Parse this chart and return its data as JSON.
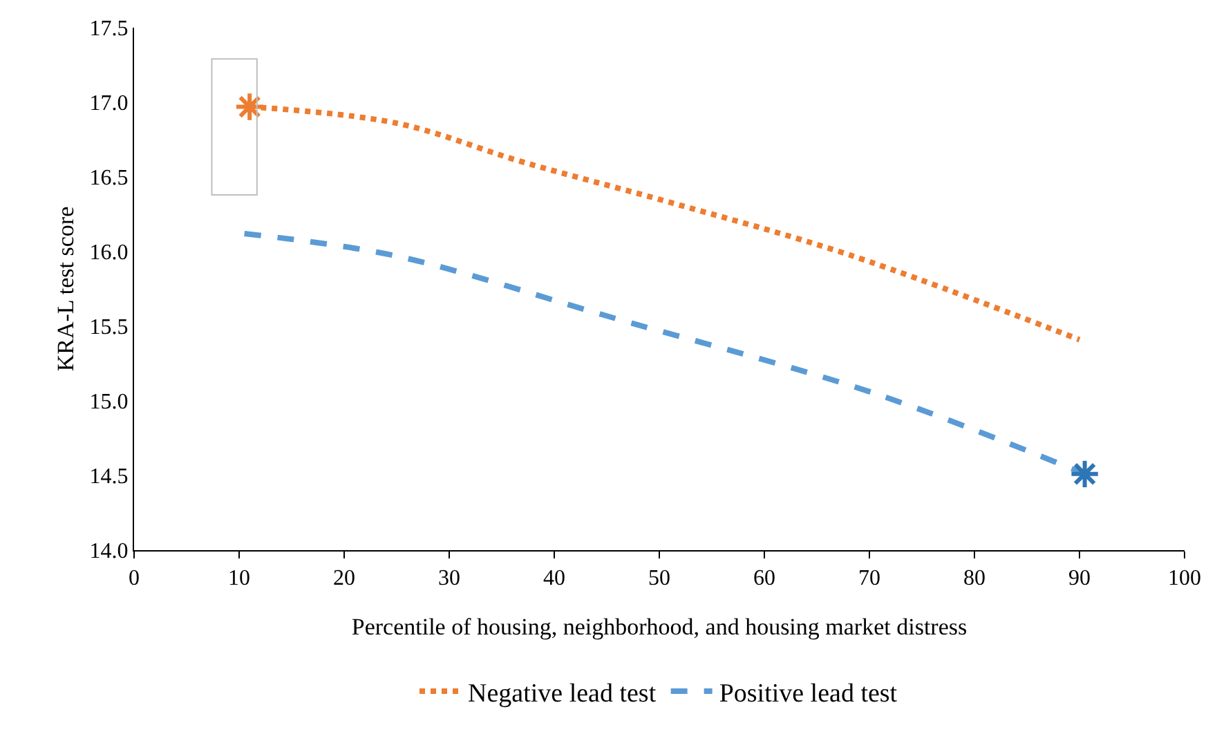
{
  "chart_data": {
    "type": "line",
    "xlabel": "Percentile of housing, neighborhood, and housing market distress",
    "ylabel": "KRA-L test score",
    "xlim": [
      0,
      100
    ],
    "xticks": [
      0,
      10,
      20,
      30,
      40,
      50,
      60,
      70,
      80,
      90,
      100
    ],
    "ylim": [
      14.0,
      17.5
    ],
    "yticks": [
      {
        "value": 14,
        "label": "14.0"
      },
      14.5,
      {
        "value": 15,
        "label": "15.0"
      },
      15.5,
      {
        "value": 16,
        "label": "16.0"
      },
      16.5,
      {
        "value": 17,
        "label": "17.0"
      },
      17.5
    ],
    "grid": false,
    "legend": "bottom",
    "series": [
      {
        "name": "Negative lead test",
        "color": "#ed7d31",
        "line_style": "dotted",
        "marker": "none",
        "x": [
          11,
          25,
          37,
          51,
          68,
          90
        ],
        "values": [
          16.97,
          16.86,
          16.6,
          16.33,
          15.98,
          15.41
        ]
      },
      {
        "name": "Positive lead test",
        "color": "#5b9bd5",
        "line_style": "dashed",
        "marker": "none",
        "x": [
          10.5,
          25,
          43,
          46.4,
          70.5,
          90.5
        ],
        "values": [
          16.12,
          15.97,
          15.61,
          15.54,
          15.05,
          14.51
        ]
      },
      {
        "type": "scatter",
        "color": "#ed7d31",
        "marker": "cross",
        "x": [
          11
        ],
        "values": [
          16.97
        ]
      },
      {
        "type": "scatter",
        "color": "#2e75b6",
        "marker": "cross",
        "x": [
          90.5
        ],
        "values": [
          14.51
        ]
      }
    ]
  }
}
